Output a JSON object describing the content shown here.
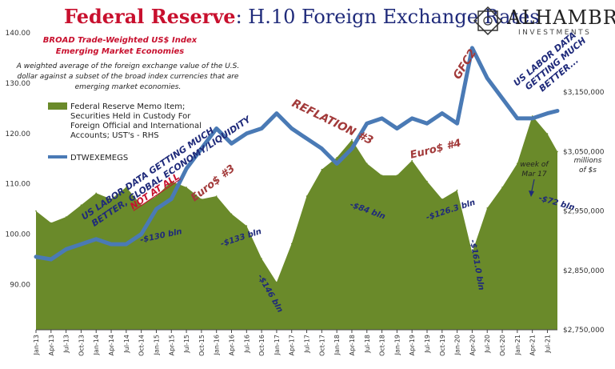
{
  "title": {
    "part1": "Federal Reserve",
    "part2": ": H.10 Foreign Exchange Rates"
  },
  "logo": {
    "name": "ALHAMBRA",
    "sub": "INVESTMENTS"
  },
  "subtitle": {
    "line1": "BROAD Trade-Weighted US$ Index",
    "line2": "Emerging Market Economies"
  },
  "description": {
    "line1": "A weighted average of the foreign exchange value of the U.S.",
    "line2": "dollar against a subset of the broad index currencies that are",
    "line3": "emerging market economies."
  },
  "legend": {
    "memo": [
      "Federal Reserve Memo Item;",
      "Securities Held in Custody For",
      "Foreign Official and International",
      "Accounts; UST's - RHS"
    ],
    "dtw": "DTWEXEMEGS"
  },
  "right_axis_title": {
    "line1": "millions",
    "line2": "of $s"
  },
  "annotations": {
    "us_labor_1a": "US LABOR DATA GETTING MUCH",
    "us_labor_1b": "BETTER, GLOBAL ECONOMY/LIQUIDITY",
    "not_at_all": "NOT AT ALL",
    "euro3": "Euro$ #3",
    "reflation": "REFLATION #3",
    "euro4": "Euro$ #4",
    "gfc2": "GFC2",
    "us_labor_2a": "US LABOR DATA",
    "us_labor_2b": "GETTING MUCH",
    "us_labor_2c": "BETTER...",
    "week_of": "week of",
    "mar17": "Mar 17",
    "l130": "-$130 bln",
    "l133": "-$133 bln",
    "l146": "-$146 bln",
    "l84": "-$84 bln",
    "l126": "-$126.3 bln",
    "l161": "-$161.0 bln",
    "l72": "-$72 bln"
  },
  "colors": {
    "line": "#4a7ab5",
    "area": "#6a8a2a",
    "title_red": "#c8102e",
    "title_blue": "#1f2a7a"
  },
  "chart_data": {
    "type": "line",
    "x_ticks": [
      "Jan-13",
      "Apr-13",
      "Jul-13",
      "Oct-13",
      "Jan-14",
      "Apr-14",
      "Jul-14",
      "Oct-14",
      "Jan-15",
      "Apr-15",
      "Jul-15",
      "Oct-15",
      "Jan-16",
      "Apr-16",
      "Jul-16",
      "Oct-16",
      "Jan-17",
      "Apr-17",
      "Jul-17",
      "Oct-17",
      "Jan-18",
      "Apr-18",
      "Jul-18",
      "Oct-18",
      "Jan-19",
      "Apr-19",
      "Jul-19",
      "Oct-19",
      "Jan-20",
      "Apr-20",
      "Jul-20",
      "Oct-20",
      "Jan-21",
      "Apr-21",
      "Jul-21"
    ],
    "y_left": {
      "ticks": [
        "90.00",
        "100.00",
        "110.00",
        "120.00",
        "130.00",
        "140.00"
      ],
      "range": [
        81,
        140
      ]
    },
    "y_right": {
      "ticks": [
        "$2,750,000",
        "$2,850,000",
        "$2,950,000",
        "$3,050,000",
        "$3,150,000"
      ],
      "range": [
        2750000,
        3250000
      ]
    },
    "series": [
      {
        "name": "DTWEXEMEGS",
        "axis": "left",
        "x": [
          "Jan-13",
          "Apr-13",
          "Jul-13",
          "Oct-13",
          "Jan-14",
          "Apr-14",
          "Jul-14",
          "Oct-14",
          "Jan-15",
          "Apr-15",
          "Jul-15",
          "Oct-15",
          "Jan-16",
          "Apr-16",
          "Jul-16",
          "Oct-16",
          "Jan-17",
          "Apr-17",
          "Jul-17",
          "Oct-17",
          "Jan-18",
          "Apr-18",
          "Jul-18",
          "Oct-18",
          "Jan-19",
          "Apr-19",
          "Jul-19",
          "Oct-19",
          "Jan-20",
          "Apr-20",
          "Jul-20",
          "Oct-20",
          "Jan-21",
          "Apr-21",
          "Jul-21",
          "Sep-21"
        ],
        "values": [
          95.5,
          95,
          97,
          98,
          99,
          98,
          98,
          100,
          105,
          107,
          113,
          117,
          121,
          118,
          120,
          121,
          124,
          121,
          119,
          117,
          114,
          117,
          122,
          123,
          121,
          123,
          122,
          124,
          122,
          137,
          131,
          127,
          123,
          123,
          124,
          124.5
        ]
      },
      {
        "name": "Federal Reserve Memo Item; Securities Held in Custody For Foreign Official and International Accounts; UST's - RHS",
        "axis": "right",
        "x": [
          "Jan-13",
          "Apr-13",
          "Jul-13",
          "Oct-13",
          "Jan-14",
          "Apr-14",
          "Jul-14",
          "Oct-14",
          "Jan-15",
          "Apr-15",
          "Jul-15",
          "Oct-15",
          "Jan-16",
          "Apr-16",
          "Jul-16",
          "Oct-16",
          "Jan-17",
          "Apr-17",
          "Jul-17",
          "Oct-17",
          "Jan-18",
          "Apr-18",
          "Jul-18",
          "Oct-18",
          "Jan-19",
          "Apr-19",
          "Jul-19",
          "Oct-19",
          "Jan-20",
          "Apr-20",
          "Jul-20",
          "Oct-20",
          "Jan-21",
          "Apr-21",
          "Jul-21",
          "Sep-21"
        ],
        "values": [
          2950000,
          2930000,
          2940000,
          2960000,
          2980000,
          2970000,
          2990000,
          2960000,
          2975000,
          3000000,
          2990000,
          2970000,
          2975000,
          2945000,
          2925000,
          2870000,
          2830000,
          2895000,
          2975000,
          3020000,
          3040000,
          3070000,
          3030000,
          3010000,
          3010000,
          3035000,
          3000000,
          2970000,
          2985000,
          2880000,
          2955000,
          2990000,
          3030000,
          3110000,
          3080000,
          3050000
        ]
      }
    ]
  }
}
